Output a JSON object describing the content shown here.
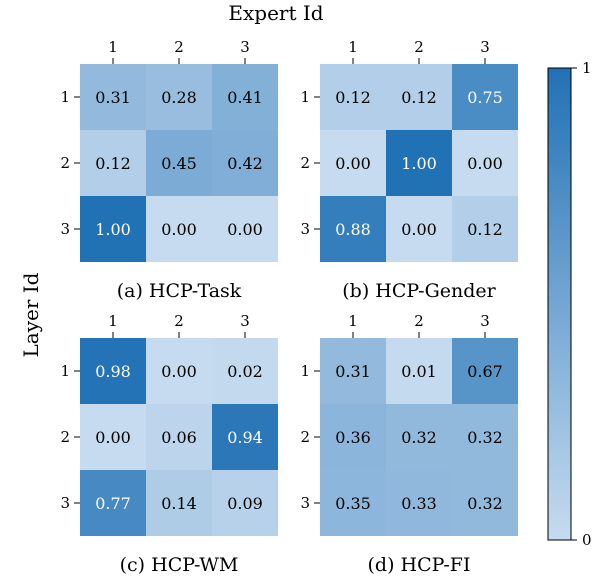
{
  "figure": {
    "x_axis_title": "Expert Id",
    "y_axis_title": "Layer Id",
    "colorbar": {
      "min_label": "0",
      "max_label": "1",
      "color_low": "#c6dbef",
      "color_high": "#2171b5"
    }
  },
  "chart_data": [
    {
      "type": "heatmap",
      "caption": "(a) HCP-Task",
      "x_categories": [
        "1",
        "2",
        "3"
      ],
      "y_categories": [
        "1",
        "2",
        "3"
      ],
      "values": [
        [
          0.31,
          0.28,
          0.41
        ],
        [
          0.12,
          0.45,
          0.42
        ],
        [
          1.0,
          0.0,
          0.0
        ]
      ],
      "labels": [
        [
          "0.31",
          "0.28",
          "0.41"
        ],
        [
          "0.12",
          "0.45",
          "0.42"
        ],
        [
          "1.00",
          "0.00",
          "0.00"
        ]
      ],
      "vmin": 0,
      "vmax": 1
    },
    {
      "type": "heatmap",
      "caption": "(b) HCP-Gender",
      "x_categories": [
        "1",
        "2",
        "3"
      ],
      "y_categories": [
        "1",
        "2",
        "3"
      ],
      "values": [
        [
          0.12,
          0.12,
          0.75
        ],
        [
          0.0,
          1.0,
          0.0
        ],
        [
          0.88,
          0.0,
          0.12
        ]
      ],
      "labels": [
        [
          "0.12",
          "0.12",
          "0.75"
        ],
        [
          "0.00",
          "1.00",
          "0.00"
        ],
        [
          "0.88",
          "0.00",
          "0.12"
        ]
      ],
      "vmin": 0,
      "vmax": 1
    },
    {
      "type": "heatmap",
      "caption": "(c) HCP-WM",
      "x_categories": [
        "1",
        "2",
        "3"
      ],
      "y_categories": [
        "1",
        "2",
        "3"
      ],
      "values": [
        [
          0.98,
          0.0,
          0.02
        ],
        [
          0.0,
          0.06,
          0.94
        ],
        [
          0.77,
          0.14,
          0.09
        ]
      ],
      "labels": [
        [
          "0.98",
          "0.00",
          "0.02"
        ],
        [
          "0.00",
          "0.06",
          "0.94"
        ],
        [
          "0.77",
          "0.14",
          "0.09"
        ]
      ],
      "vmin": 0,
      "vmax": 1
    },
    {
      "type": "heatmap",
      "caption": "(d) HCP-FI",
      "x_categories": [
        "1",
        "2",
        "3"
      ],
      "y_categories": [
        "1",
        "2",
        "3"
      ],
      "values": [
        [
          0.31,
          0.01,
          0.67
        ],
        [
          0.36,
          0.32,
          0.32
        ],
        [
          0.35,
          0.33,
          0.32
        ]
      ],
      "labels": [
        [
          "0.31",
          "0.01",
          "0.67"
        ],
        [
          "0.36",
          "0.32",
          "0.32"
        ],
        [
          "0.35",
          "0.33",
          "0.32"
        ]
      ],
      "vmin": 0,
      "vmax": 1
    }
  ]
}
